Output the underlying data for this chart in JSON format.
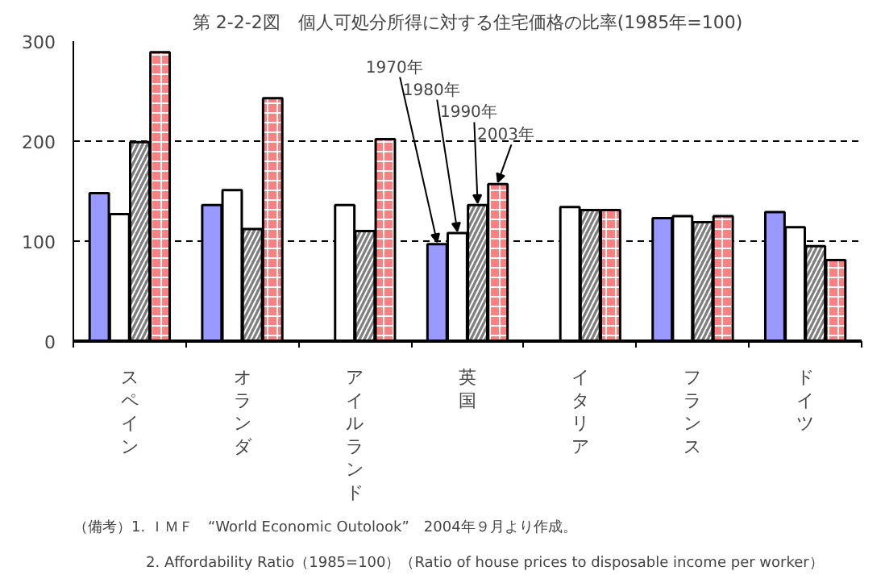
{
  "chart_data": {
    "type": "bar",
    "title": "第 2-2-2図　個人可処分所得に対する住宅価格の比率(1985年=100)",
    "categories": [
      "スペイン",
      "オランダ",
      "アイルランド",
      "英国",
      "イタリア",
      "フランス",
      "ドイツ"
    ],
    "series": [
      {
        "name": "1970年",
        "color": "#9999ff",
        "values": [
          148,
          136,
          null,
          97,
          null,
          123,
          129
        ]
      },
      {
        "name": "1980年",
        "color": "#ffffff",
        "values": [
          127,
          151,
          136,
          108,
          134,
          125,
          114
        ]
      },
      {
        "name": "1990年",
        "color": "#808080",
        "values": [
          199,
          112,
          110,
          136,
          131,
          119,
          95
        ]
      },
      {
        "name": "2003年",
        "color": "#ff8080",
        "values": [
          289,
          243,
          202,
          157,
          131,
          125,
          81
        ]
      }
    ],
    "ylim": [
      0,
      300
    ],
    "yticks": [
      0,
      100,
      200,
      300
    ],
    "grid": "y",
    "annotations": [
      "（備考）1. ＩＭＦ　“World Economic Outolook”　2004年９月より作成。",
      "2. Affordability Ratio（1985=100）（Ratio of house prices to disposable income per worker）"
    ]
  }
}
